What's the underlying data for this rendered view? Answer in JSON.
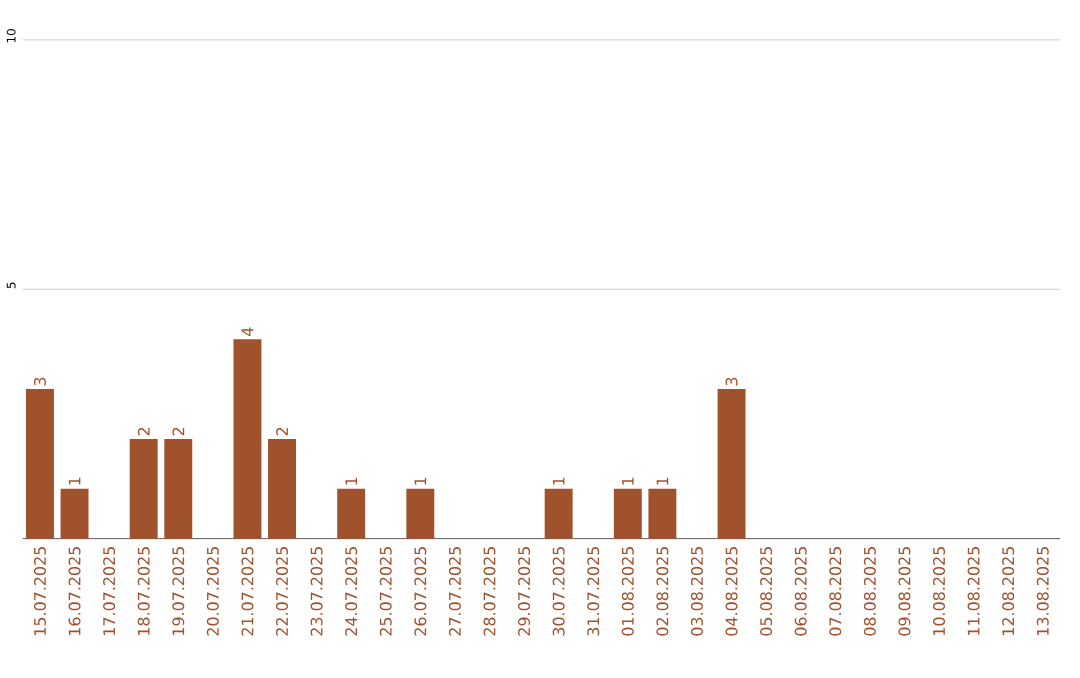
{
  "chart_data": {
    "type": "bar",
    "categories": [
      "15.07.2025",
      "16.07.2025",
      "17.07.2025",
      "18.07.2025",
      "19.07.2025",
      "20.07.2025",
      "21.07.2025",
      "22.07.2025",
      "23.07.2025",
      "24.07.2025",
      "25.07.2025",
      "26.07.2025",
      "27.07.2025",
      "28.07.2025",
      "29.07.2025",
      "30.07.2025",
      "31.07.2025",
      "01.08.2025",
      "02.08.2025",
      "03.08.2025",
      "04.08.2025",
      "05.08.2025",
      "06.08.2025",
      "07.08.2025",
      "08.08.2025",
      "09.08.2025",
      "10.08.2025",
      "11.08.2025",
      "12.08.2025",
      "13.08.2025"
    ],
    "values": [
      3,
      1,
      0,
      2,
      2,
      0,
      4,
      2,
      0,
      1,
      0,
      1,
      0,
      0,
      0,
      1,
      0,
      1,
      1,
      0,
      3,
      0,
      0,
      0,
      0,
      0,
      0,
      0,
      0,
      0
    ],
    "value_labels": [
      "3",
      "1",
      null,
      "2",
      "2",
      null,
      "4",
      "2",
      null,
      "1",
      null,
      "1",
      null,
      null,
      null,
      "1",
      null,
      "1",
      "1",
      null,
      "3",
      null,
      null,
      null,
      null,
      null,
      null,
      null,
      null,
      null
    ],
    "color": "#a0522d",
    "ylim": [
      0,
      10
    ],
    "yticks": [
      5,
      10
    ],
    "grid": "y"
  }
}
